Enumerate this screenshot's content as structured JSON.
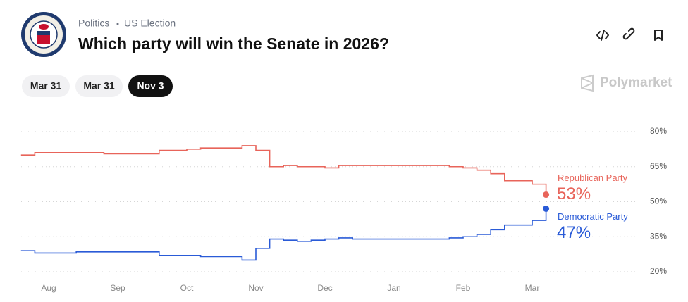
{
  "header": {
    "breadcrumb": [
      "Politics",
      "US Election"
    ],
    "title": "Which party will win the Senate in 2026?",
    "buttons": [
      "Mar 31",
      "Mar 31",
      "Nov 3"
    ],
    "brand": "Polymarket"
  },
  "chart_data": {
    "type": "line",
    "categories": [
      "null",
      null,
      "Aug",
      null,
      null,
      null,
      null,
      "Sep",
      null,
      null,
      null,
      null,
      "Oct",
      null,
      null,
      null,
      null,
      "Nov",
      null,
      null,
      null,
      null,
      "Dec",
      null,
      null,
      null,
      null,
      "Jan",
      null,
      null,
      null,
      null,
      "Feb",
      null,
      null,
      null,
      null,
      "Mar",
      null
    ],
    "series": [
      {
        "name": "Republican Party",
        "color": "#e8645a",
        "values": [
          70,
          71,
          71,
          71,
          71,
          71,
          70.5,
          70.5,
          70.5,
          70.5,
          72,
          72,
          72.5,
          73,
          73,
          73,
          74,
          72,
          65,
          65.5,
          65,
          65,
          64.5,
          65.5,
          65.5,
          65.5,
          65.5,
          65.5,
          65.5,
          65.5,
          65.5,
          65,
          64.5,
          63.5,
          62,
          59,
          59,
          57.5,
          53
        ],
        "value_labels": [
          null,
          null,
          null,
          null,
          null,
          null,
          null,
          null,
          null,
          null,
          null,
          null,
          null,
          null,
          null,
          null,
          null,
          null,
          null,
          null,
          null,
          null,
          null,
          null,
          null,
          null,
          null,
          null,
          null,
          null,
          null,
          null,
          null,
          null,
          null,
          null,
          null,
          null,
          "53%"
        ]
      },
      {
        "name": "Democratic Party",
        "color": "#2a5bd7",
        "values": [
          29,
          28,
          28,
          28,
          28.5,
          28.5,
          28.5,
          28.5,
          28.5,
          28.5,
          27,
          27,
          27,
          26.5,
          26.5,
          26.5,
          25,
          30,
          34,
          33.5,
          33,
          33.5,
          34,
          34.5,
          34,
          34,
          34,
          34,
          34,
          34,
          34,
          34.5,
          35,
          36,
          38,
          40,
          40,
          42,
          47
        ],
        "value_labels": [
          null,
          null,
          null,
          null,
          null,
          null,
          null,
          null,
          null,
          null,
          null,
          null,
          null,
          null,
          null,
          null,
          null,
          null,
          null,
          null,
          null,
          null,
          null,
          null,
          null,
          null,
          null,
          null,
          null,
          null,
          null,
          null,
          null,
          null,
          null,
          null,
          null,
          null,
          "47%"
        ]
      }
    ],
    "ylim": [
      20,
      80
    ],
    "yticks": [
      {
        "value": 20,
        "label": "20%"
      },
      {
        "value": 35,
        "label": "35%"
      },
      {
        "value": 50,
        "label": "50%"
      },
      {
        "value": 65,
        "label": "65%"
      },
      {
        "value": 80,
        "label": "80%"
      }
    ],
    "grid": true
  }
}
